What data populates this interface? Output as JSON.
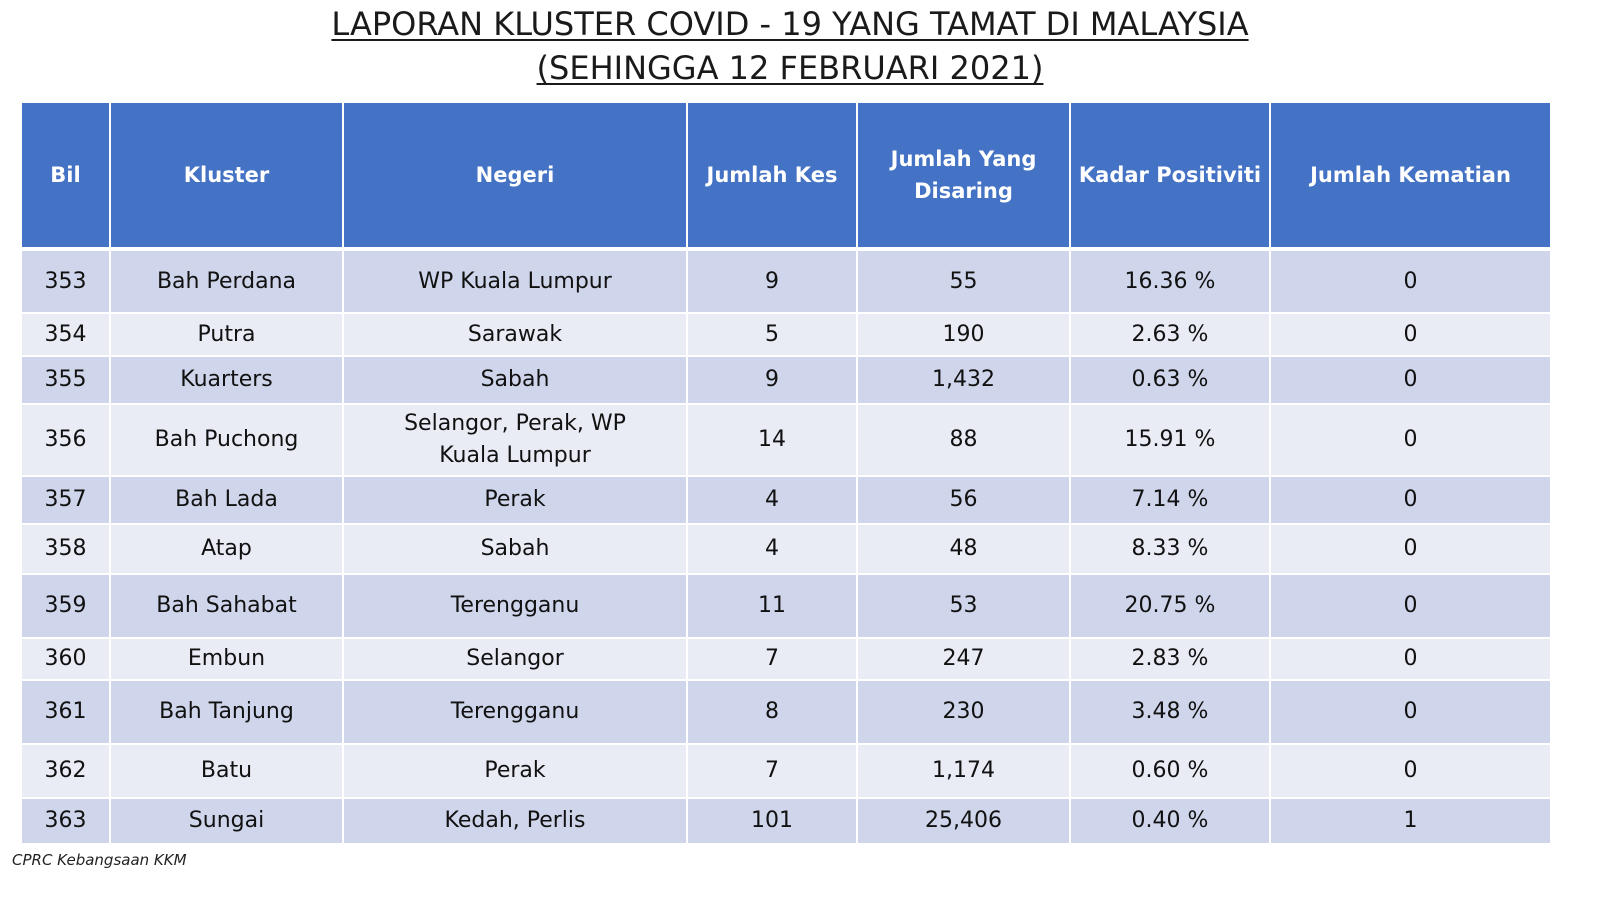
{
  "title": {
    "line1": "LAPORAN KLUSTER COVID - 19 YANG TAMAT DI MALAYSIA",
    "line2": "(SEHINGGA 12 FEBRUARI 2021)"
  },
  "table": {
    "headers": [
      "Bil",
      "Kluster",
      "Negeri",
      "Jumlah Kes",
      "Jumlah Yang Disaring",
      "Kadar Positiviti",
      "Jumlah Kematian"
    ],
    "rows": [
      [
        "353",
        "Bah Perdana",
        "WP Kuala Lumpur",
        "9",
        "55",
        "16.36 %",
        "0"
      ],
      [
        "354",
        "Putra",
        "Sarawak",
        "5",
        "190",
        "2.63 %",
        "0"
      ],
      [
        "355",
        "Kuarters",
        "Sabah",
        "9",
        "1,432",
        "0.63 %",
        "0"
      ],
      [
        "356",
        "Bah Puchong",
        "Selangor, Perak, WP Kuala Lumpur",
        "14",
        "88",
        "15.91 %",
        "0"
      ],
      [
        "357",
        "Bah Lada",
        "Perak",
        "4",
        "56",
        "7.14 %",
        "0"
      ],
      [
        "358",
        "Atap",
        "Sabah",
        "4",
        "48",
        "8.33 %",
        "0"
      ],
      [
        "359",
        "Bah Sahabat",
        "Terengganu",
        "11",
        "53",
        "20.75 %",
        "0"
      ],
      [
        "360",
        "Embun",
        "Selangor",
        "7",
        "247",
        "2.83 %",
        "0"
      ],
      [
        "361",
        "Bah Tanjung",
        "Terengganu",
        "8",
        "230",
        "3.48 %",
        "0"
      ],
      [
        "362",
        "Batu",
        "Perak",
        "7",
        "1,174",
        "0.60 %",
        "0"
      ],
      [
        "363",
        "Sungai",
        "Kedah, Perlis",
        "101",
        "25,406",
        "0.40 %",
        "1"
      ]
    ]
  },
  "footer": "CPRC Kebangsaan KKM",
  "colors": {
    "header_bg": "#4472c4",
    "row_dark": "#cfd5ea",
    "row_light": "#e9ebf5"
  }
}
